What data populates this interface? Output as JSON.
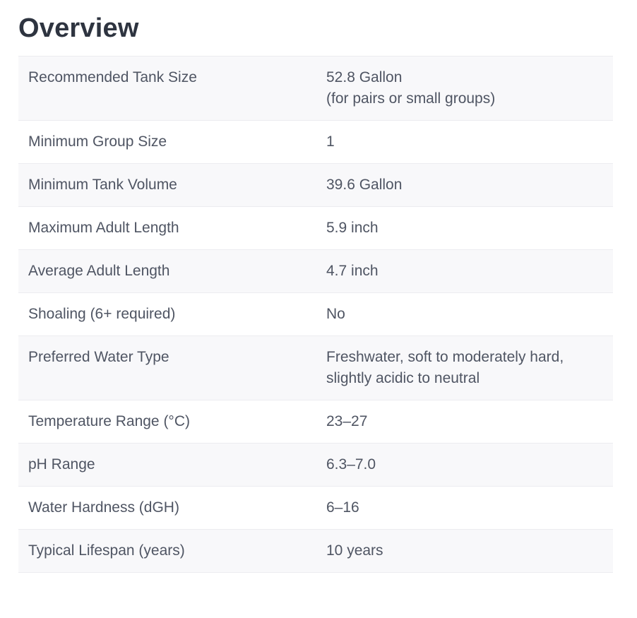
{
  "page": {
    "title": "Overview"
  },
  "overview": {
    "rows": [
      {
        "label": "Recommended Tank Size",
        "value": [
          "52.8 Gallon",
          "(for pairs or small groups)"
        ]
      },
      {
        "label": "Minimum Group Size",
        "value": [
          "1"
        ]
      },
      {
        "label": "Minimum Tank Volume",
        "value": [
          "39.6 Gallon"
        ]
      },
      {
        "label": "Maximum Adult Length",
        "value": [
          "5.9 inch"
        ]
      },
      {
        "label": "Average Adult Length",
        "value": [
          "4.7 inch"
        ]
      },
      {
        "label": "Shoaling (6+ required)",
        "value": [
          "No"
        ]
      },
      {
        "label": "Preferred Water Type",
        "value": [
          "Freshwater, soft to moderately hard,",
          "slightly acidic to neutral"
        ]
      },
      {
        "label": "Temperature Range (°C)",
        "value": [
          "23–27"
        ]
      },
      {
        "label": "pH Range",
        "value": [
          "6.3–7.0"
        ]
      },
      {
        "label": "Water Hardness (dGH)",
        "value": [
          "6–16"
        ]
      },
      {
        "label": "Typical Lifespan (years)",
        "value": [
          "10 years"
        ]
      }
    ]
  },
  "colors": {
    "title": "#2e3440",
    "text": "#4f5563",
    "row_stripe": "#f8f8fa",
    "row_border": "#ececf0"
  }
}
